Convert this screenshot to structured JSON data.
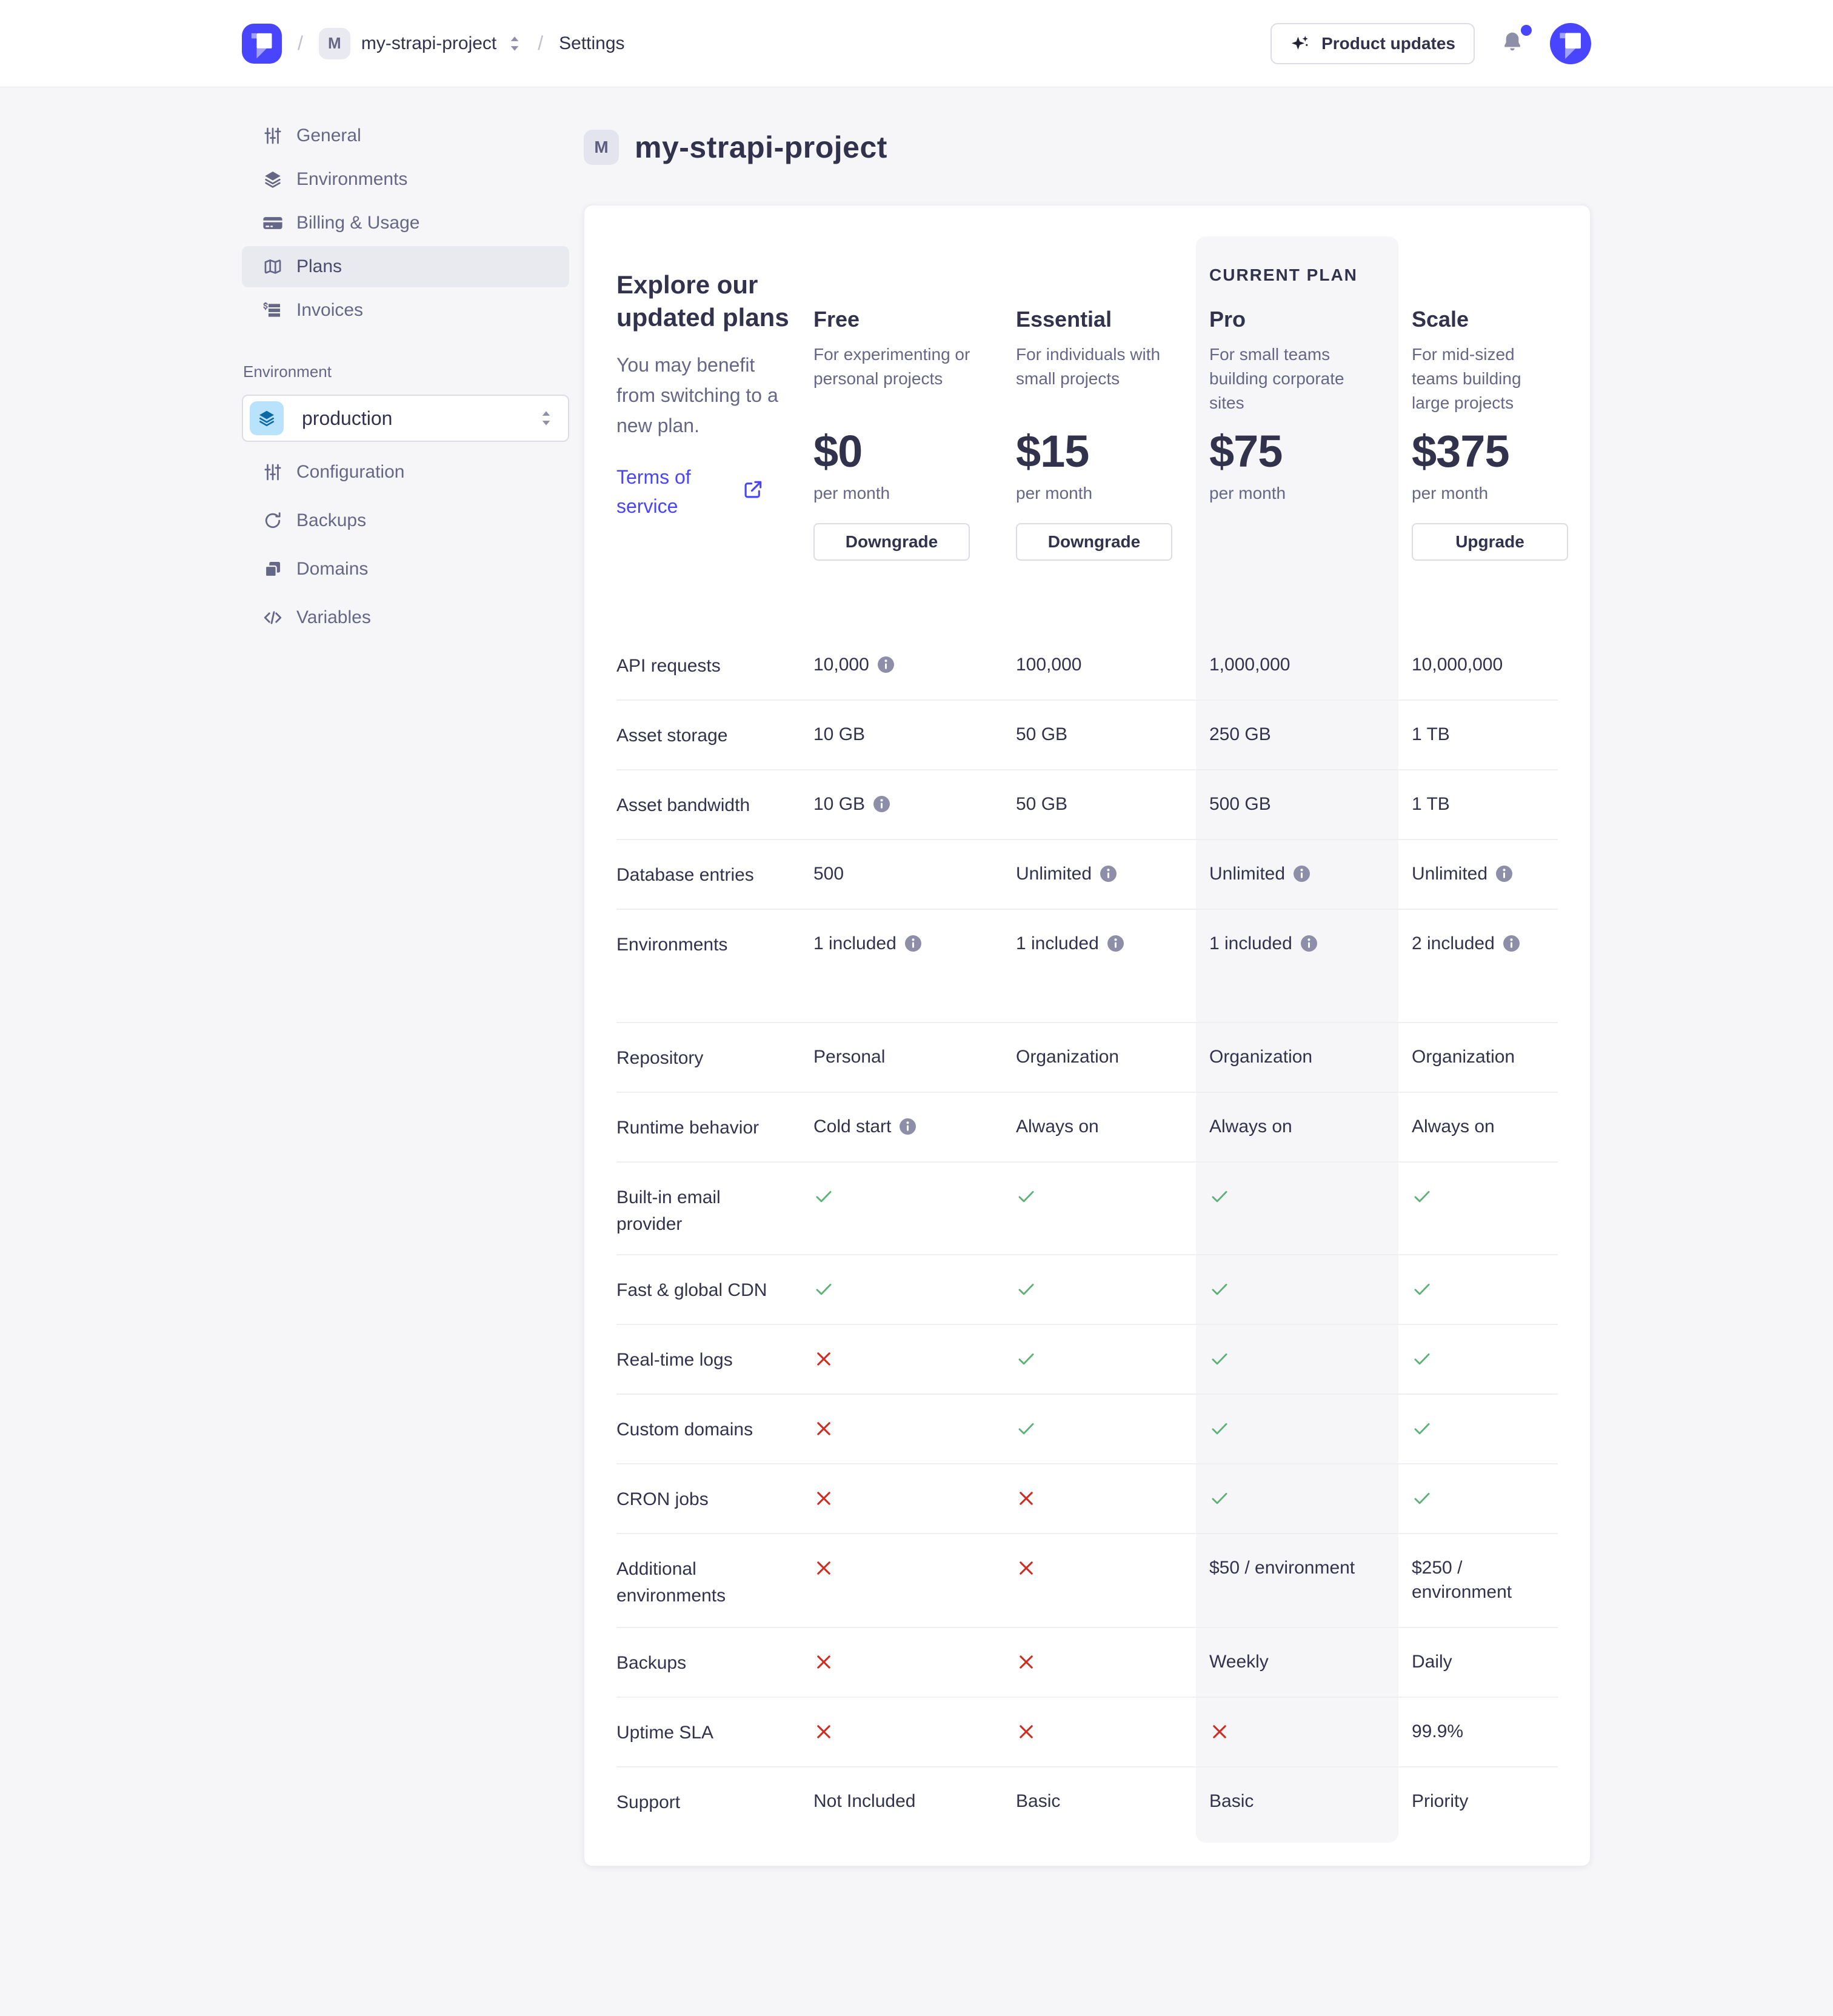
{
  "header": {
    "breadcrumb": {
      "separator": "/",
      "project_badge": "M",
      "project_name": "my-strapi-project",
      "settings_label": "Settings"
    },
    "product_updates_label": "Product updates"
  },
  "sidebar": {
    "items": [
      {
        "label": "General",
        "icon": "sliders",
        "active": false
      },
      {
        "label": "Environments",
        "icon": "layers",
        "active": false
      },
      {
        "label": "Billing & Usage",
        "icon": "credit-card",
        "active": false
      },
      {
        "label": "Plans",
        "icon": "map",
        "active": true
      },
      {
        "label": "Invoices",
        "icon": "receipt",
        "active": false
      }
    ],
    "environment_label": "Environment",
    "environment_value": "production",
    "env_items": [
      {
        "label": "Configuration",
        "icon": "sliders"
      },
      {
        "label": "Backups",
        "icon": "refresh"
      },
      {
        "label": "Domains",
        "icon": "domains"
      },
      {
        "label": "Variables",
        "icon": "code"
      }
    ]
  },
  "main": {
    "title_badge": "M",
    "title": "my-strapi-project",
    "intro": {
      "heading": "Explore our updated plans",
      "body": "You may benefit from switching to a new plan.",
      "link": "Terms of service"
    },
    "current_plan_label": "CURRENT PLAN",
    "plans": [
      {
        "name": "Free",
        "description": "For experimenting or personal projects",
        "price": "$0",
        "period": "per month",
        "action": "Downgrade",
        "current": false
      },
      {
        "name": "Essential",
        "description": "For individuals with small projects",
        "price": "$15",
        "period": "per month",
        "action": "Downgrade",
        "current": false
      },
      {
        "name": "Pro",
        "description": "For small teams building corporate sites",
        "price": "$75",
        "period": "per month",
        "action": null,
        "current": true
      },
      {
        "name": "Scale",
        "description": "For mid-sized teams building large projects",
        "price": "$375",
        "period": "per month",
        "action": "Upgrade",
        "current": false
      }
    ],
    "features": [
      {
        "label": "API requests",
        "values": [
          {
            "text": "10,000",
            "info": true
          },
          {
            "text": "100,000"
          },
          {
            "text": "1,000,000"
          },
          {
            "text": "10,000,000"
          }
        ]
      },
      {
        "label": "Asset storage",
        "values": [
          {
            "text": "10 GB"
          },
          {
            "text": "50 GB"
          },
          {
            "text": "250 GB"
          },
          {
            "text": "1 TB"
          }
        ]
      },
      {
        "label": "Asset bandwidth",
        "values": [
          {
            "text": "10 GB",
            "info": true
          },
          {
            "text": "50 GB"
          },
          {
            "text": "500 GB"
          },
          {
            "text": "1 TB"
          }
        ]
      },
      {
        "label": "Database entries",
        "values": [
          {
            "text": "500"
          },
          {
            "text": "Unlimited",
            "info": true
          },
          {
            "text": "Unlimited",
            "info": true
          },
          {
            "text": "Unlimited",
            "info": true
          }
        ]
      },
      {
        "label": "Environments",
        "rh": 187,
        "values": [
          {
            "text": "1 included",
            "info": true
          },
          {
            "text": "1 included",
            "info": true
          },
          {
            "text": "1 included",
            "info": true
          },
          {
            "text": "2 included",
            "info": true
          }
        ]
      },
      {
        "label": "Repository",
        "values": [
          {
            "text": "Personal"
          },
          {
            "text": "Organization"
          },
          {
            "text": "Organization"
          },
          {
            "text": "Organization"
          }
        ]
      },
      {
        "label": "Runtime behavior",
        "values": [
          {
            "text": "Cold start",
            "info": true
          },
          {
            "text": "Always on"
          },
          {
            "text": "Always on"
          },
          {
            "text": "Always on"
          }
        ]
      },
      {
        "label": "Built-in email provider",
        "rh": 153,
        "values": [
          {
            "check": true
          },
          {
            "check": true
          },
          {
            "check": true
          },
          {
            "check": true
          }
        ]
      },
      {
        "label": "Fast & global CDN",
        "values": [
          {
            "check": true
          },
          {
            "check": true
          },
          {
            "check": true
          },
          {
            "check": true
          }
        ]
      },
      {
        "label": "Real-time logs",
        "values": [
          {
            "cross": true
          },
          {
            "check": true
          },
          {
            "check": true
          },
          {
            "check": true
          }
        ]
      },
      {
        "label": "Custom domains",
        "values": [
          {
            "cross": true
          },
          {
            "check": true
          },
          {
            "check": true
          },
          {
            "check": true
          }
        ]
      },
      {
        "label": "CRON jobs",
        "values": [
          {
            "cross": true
          },
          {
            "cross": true
          },
          {
            "check": true
          },
          {
            "check": true
          }
        ]
      },
      {
        "label": "Additional environments",
        "rh": 155,
        "values": [
          {
            "cross": true
          },
          {
            "cross": true
          },
          {
            "text": "$50 / environment"
          },
          {
            "text": "$250 / environment"
          }
        ]
      },
      {
        "label": "Backups",
        "values": [
          {
            "cross": true
          },
          {
            "cross": true
          },
          {
            "text": "Weekly"
          },
          {
            "text": "Daily"
          }
        ]
      },
      {
        "label": "Uptime SLA",
        "values": [
          {
            "cross": true
          },
          {
            "cross": true
          },
          {
            "cross": true
          },
          {
            "text": "99.9%"
          }
        ]
      },
      {
        "label": "Support",
        "rh": 132,
        "values": [
          {
            "text": "Not Included"
          },
          {
            "text": "Basic"
          },
          {
            "text": "Basic"
          },
          {
            "text": "Priority"
          }
        ]
      }
    ]
  },
  "colors": {
    "accent": "#4945ff",
    "success": "#5cb176",
    "danger": "#d02b20",
    "info_icon": "#8e8ea9",
    "env_icon_bg": "#b9e2fd",
    "env_icon_fg": "#0b6aa2",
    "page_bg": "#f6f6f9",
    "current_plan_bg": "#f6f6f9"
  }
}
